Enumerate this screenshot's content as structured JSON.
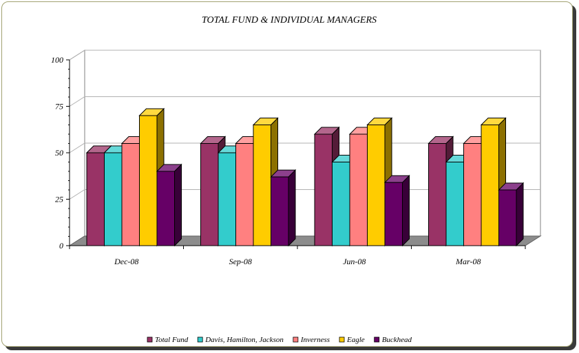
{
  "chart_data": {
    "type": "bar",
    "title": "TOTAL FUND & INDIVIDUAL MANAGERS",
    "xlabel": "",
    "ylabel": "",
    "categories": [
      "Dec-08",
      "Sep-08",
      "Jun-08",
      "Mar-08"
    ],
    "ylim": [
      0,
      100
    ],
    "yticks": [
      "0",
      "25",
      "50",
      "75",
      "100"
    ],
    "grid": true,
    "legend_position": "bottom",
    "series": [
      {
        "name": "Total Fund",
        "color": "#993366",
        "values": [
          50,
          55,
          60,
          55
        ]
      },
      {
        "name": "Davis, Hamilton, Jackson",
        "color": "#33CCCC",
        "values": [
          50,
          50,
          45,
          45
        ]
      },
      {
        "name": "Inverness",
        "color": "#FF8080",
        "values": [
          55,
          55,
          60,
          55
        ]
      },
      {
        "name": "Eagle",
        "color": "#FFCC00",
        "values": [
          70,
          65,
          65,
          65
        ]
      },
      {
        "name": "Buckhead",
        "color": "#660066",
        "values": [
          40,
          37,
          34,
          30
        ]
      }
    ]
  }
}
